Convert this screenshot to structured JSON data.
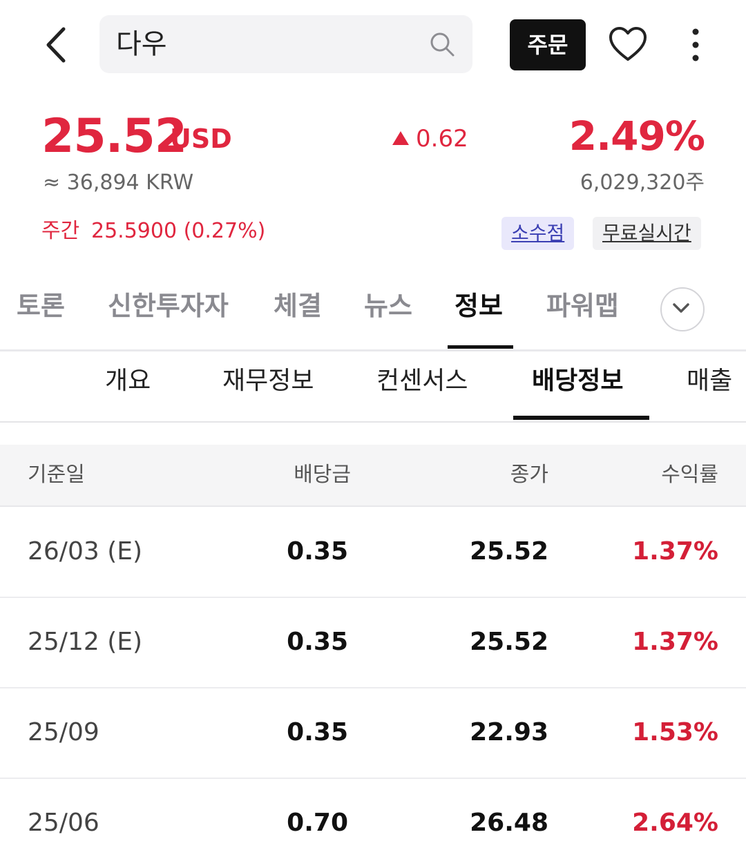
{
  "header": {
    "search_text": "다우",
    "order_label": "주문"
  },
  "quote": {
    "price": "25.52",
    "currency": "USD",
    "change": "0.62",
    "change_pct": "2.49%",
    "krw_value": "≈ 36,894 KRW",
    "volume": "6,029,320주",
    "weekly_label": "주간",
    "weekly_value": "25.5900 (0.27%)",
    "badge_decimal": "소수점",
    "badge_realtime": "무료실시간",
    "up_color": "#e0263f"
  },
  "main_tabs": [
    {
      "label": "토론"
    },
    {
      "label": "신한투자자"
    },
    {
      "label": "체결"
    },
    {
      "label": "뉴스"
    },
    {
      "label": "정보",
      "active": true
    },
    {
      "label": "파워맵"
    }
  ],
  "sub_tabs": [
    {
      "label": "개요"
    },
    {
      "label": "재무정보"
    },
    {
      "label": "컨센서스"
    },
    {
      "label": "배당정보",
      "active": true
    },
    {
      "label": "매출"
    }
  ],
  "dividend_table": {
    "headers": [
      "기준일",
      "배당금",
      "종가",
      "수익률"
    ],
    "rows": [
      {
        "date": "26/03 (E)",
        "dividend": "0.35",
        "close": "25.52",
        "yield": "1.37%"
      },
      {
        "date": "25/12 (E)",
        "dividend": "0.35",
        "close": "25.52",
        "yield": "1.37%"
      },
      {
        "date": "25/09",
        "dividend": "0.35",
        "close": "22.93",
        "yield": "1.53%"
      },
      {
        "date": "25/06",
        "dividend": "0.70",
        "close": "26.48",
        "yield": "2.64%"
      }
    ]
  }
}
